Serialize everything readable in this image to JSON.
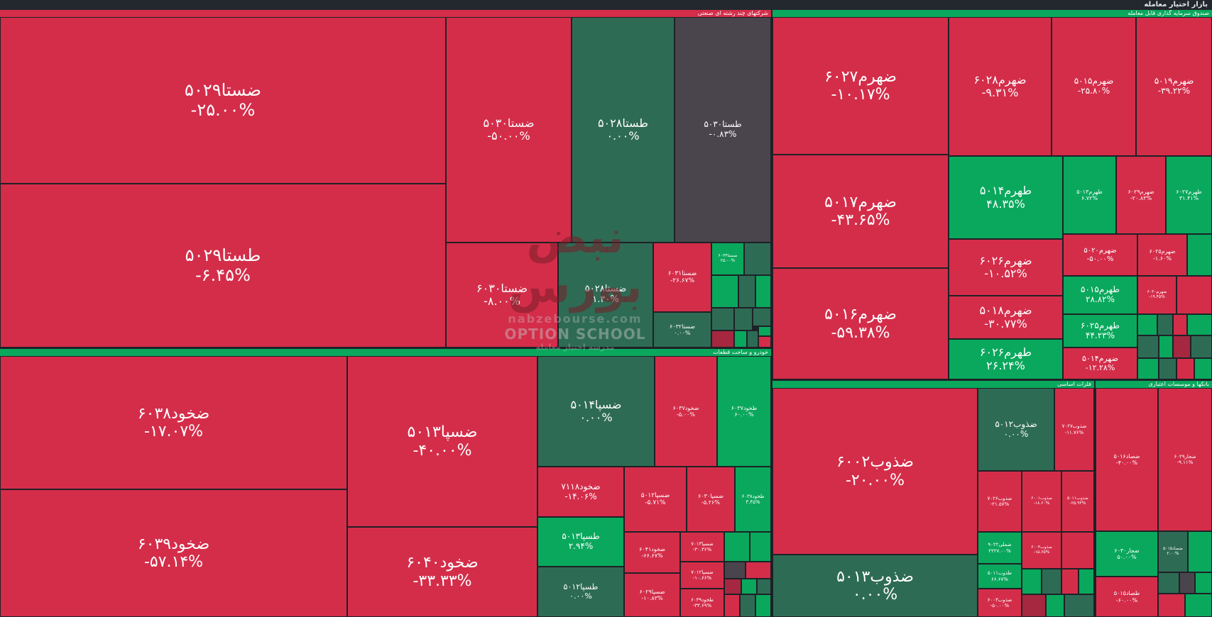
{
  "app_title": "بازار اختیار معامله",
  "colors": {
    "negative": "#d42d4a",
    "positive": "#0aa85d",
    "neutral": "#2e6b55",
    "neutral_dark": "#4a454d"
  },
  "sectors": {
    "conglomerate": {
      "title": "شرکتهای چند رشته ای صنعتی"
    },
    "fund": {
      "title": "صندوق سرمایه گذاری قابل معامله"
    },
    "auto": {
      "title": "خودرو و ساخت قطعات"
    },
    "metals": {
      "title": "فلزات اساسی"
    },
    "banks": {
      "title": "بانکها و موسسات اعتباری"
    }
  },
  "tiles": [
    {
      "sym": "ضستا۵۰۲۹",
      "pct": "-۲۵.۰۰%"
    },
    {
      "sym": "طستا۵۰۲۹",
      "pct": "-۶.۴۵%"
    },
    {
      "sym": "ضستا۵۰۳۰",
      "pct": "-۵۰.۰۰%"
    },
    {
      "sym": "طستا۵۰۲۸",
      "pct": "۰.۰۰%"
    },
    {
      "sym": "طستا۵۰۳۰",
      "pct": "-۰.۸۳%"
    },
    {
      "sym": "ضستا۶۰۳۰",
      "pct": "-۸.۰۰%"
    },
    {
      "sym": "ضستا۵۰۲۸",
      "pct": "۱.۳۰%"
    },
    {
      "sym": "ضستا۶۰۳۱",
      "pct": "-۲۶.۶۷%"
    },
    {
      "sym": "ضستا۶۰۳۳",
      "pct": "۲۵.۰۰%"
    },
    {
      "sym": "ضستا۶۰۳۲",
      "pct": "۰.۰۰%"
    },
    {
      "sym": "ضهرم۶۰۲۷",
      "pct": "-۱۰.۱۷%"
    },
    {
      "sym": "ضهرم۶۰۲۸",
      "pct": "-۹.۳۱%"
    },
    {
      "sym": "ضهرم۵۰۱۵",
      "pct": "-۲۵.۸۰%"
    },
    {
      "sym": "ضهرم۵۰۱۹",
      "pct": "-۳۹.۲۲%"
    },
    {
      "sym": "ضهرم۵۰۱۷",
      "pct": "-۴۳.۶۵%"
    },
    {
      "sym": "طهرم۵۰۱۴",
      "pct": "۴۸.۳۵%"
    },
    {
      "sym": "طهرم۵۰۱۳",
      "pct": "۶.۷۲%"
    },
    {
      "sym": "ضهرم۶۰۲۹",
      "pct": "-۲۰.۸۳%"
    },
    {
      "sym": "طهرم۶۰۲۷",
      "pct": "۳۱.۴۱%"
    },
    {
      "sym": "ضهرم۶۰۲۶",
      "pct": "-۱۰.۵۲%"
    },
    {
      "sym": "ضهرم۵۰۲۰",
      "pct": "-۵۰.۰۰%"
    },
    {
      "sym": "ضهرم۶۰۲۵",
      "pct": "-۱.۶۰%"
    },
    {
      "sym": "ضهرم۵۰۱۶",
      "pct": "-۵۹.۳۸%"
    },
    {
      "sym": "ضهرم۵۰۱۸",
      "pct": "-۳۰.۷۷%"
    },
    {
      "sym": "طهرم۵۰۱۵",
      "pct": "۲۸.۸۲%"
    },
    {
      "sym": "ضهرم۶۰۳۰",
      "pct": "-۱۹.۴۵%"
    },
    {
      "sym": "طهرم۶۰۲۵",
      "pct": "۴۴.۲۳%"
    },
    {
      "sym": "طهرم۶۰۲۶",
      "pct": "۲۶.۲۴%"
    },
    {
      "sym": "ضهرم۵۰۱۴",
      "pct": "-۱۲.۲۸%"
    },
    {
      "sym": "ضخود۶۰۳۸",
      "pct": "-۱۷.۰۷%"
    },
    {
      "sym": "ضسپا۵۰۱۳",
      "pct": "-۴۰.۰۰%"
    },
    {
      "sym": "ضسپا۵۰۱۴",
      "pct": "۰.۰۰%"
    },
    {
      "sym": "ضخود۶۰۳۷",
      "pct": "-۵.۰۰%"
    },
    {
      "sym": "طخود۶۰۳۷",
      "pct": "۶۰.۰۰%"
    },
    {
      "sym": "ضخود۶۰۳۹",
      "pct": "-۵۷.۱۴%"
    },
    {
      "sym": "ضخود۷۱۱۸",
      "pct": "-۱۴.۰۶%"
    },
    {
      "sym": "ضسپا۵۰۱۲",
      "pct": "-۵.۷۱%"
    },
    {
      "sym": "ضسپا۶۰۳۰",
      "pct": "-۵.۲۶%"
    },
    {
      "sym": "طخود۶۰۳۸",
      "pct": "۳.۴۵%"
    },
    {
      "sym": "ضخود۶۰۴۰",
      "pct": "-۳۳.۳۳%"
    },
    {
      "sym": "طسپا۵۰۱۳",
      "pct": "۲.۹۴%"
    },
    {
      "sym": "ضخود۶۰۴۱",
      "pct": "-۶۶.۶۷%"
    },
    {
      "sym": "ضسپا۷۰۱۳",
      "pct": "-۳۰.۳۶%"
    },
    {
      "sym": "طسپا۵۰۱۲",
      "pct": "۰.۰۰%"
    },
    {
      "sym": "ضسپا۶۰۲۹",
      "pct": "-۱۰.۸۳%"
    },
    {
      "sym": "ضسپا۷۰۱۲",
      "pct": "-۱۰.۶۶%"
    },
    {
      "sym": "طخود۶۰۳۹",
      "pct": "-۳۳.۶۹%"
    },
    {
      "sym": "ضذوب۶۰۰۲",
      "pct": "-۲۰.۰۰%"
    },
    {
      "sym": "ضذوب۵۰۱۲",
      "pct": "۰.۰۰%"
    },
    {
      "sym": "ضذوب۷۰۲۷",
      "pct": "-۱۱.۷۶%"
    },
    {
      "sym": "ضذوب۷۰۲۶",
      "pct": "-۲۱.۵۷%"
    },
    {
      "sym": "ضذوب۶۰۰۱",
      "pct": "-۱۸.۶۰%"
    },
    {
      "sym": "ضذوب۵۰۱۱",
      "pct": "-۲۵.۹۳%"
    },
    {
      "sym": "ضملی۹۰۲۲",
      "pct": "۲۲۲۷.۰۰%"
    },
    {
      "sym": "ضذوب۶۰۰۳",
      "pct": "-۱۵.۶۵%"
    },
    {
      "sym": "طذوب۵۰۱۱",
      "pct": "۶۶.۶۷%"
    },
    {
      "sym": "ضذوب۵۰۱۳",
      "pct": "۰.۰۰%"
    },
    {
      "sym": "ضذوب۶۰۰۳",
      "pct": "-۵۰.۰۰%"
    },
    {
      "sym": "ضصاد۵۰۱۶",
      "pct": "-۴۰.۰۰%"
    },
    {
      "sym": "ضجار۶۰۲۹",
      "pct": "-۹.۱۱%"
    },
    {
      "sym": "ضجار۶۰۳۰",
      "pct": "۵۰.۰۰%"
    },
    {
      "sym": "ضصاد۵۰۱۵",
      "pct": "۲.۰۰%"
    },
    {
      "sym": "طصاد۵۰۱۵",
      "pct": "-۶۰.۰۰%"
    }
  ],
  "watermark": {
    "logo_text": "نبض بورس",
    "site": "nabzebourse.com",
    "school": "OPTION SCHOOL",
    "tagline": "مدرسه اختیار معامله"
  }
}
